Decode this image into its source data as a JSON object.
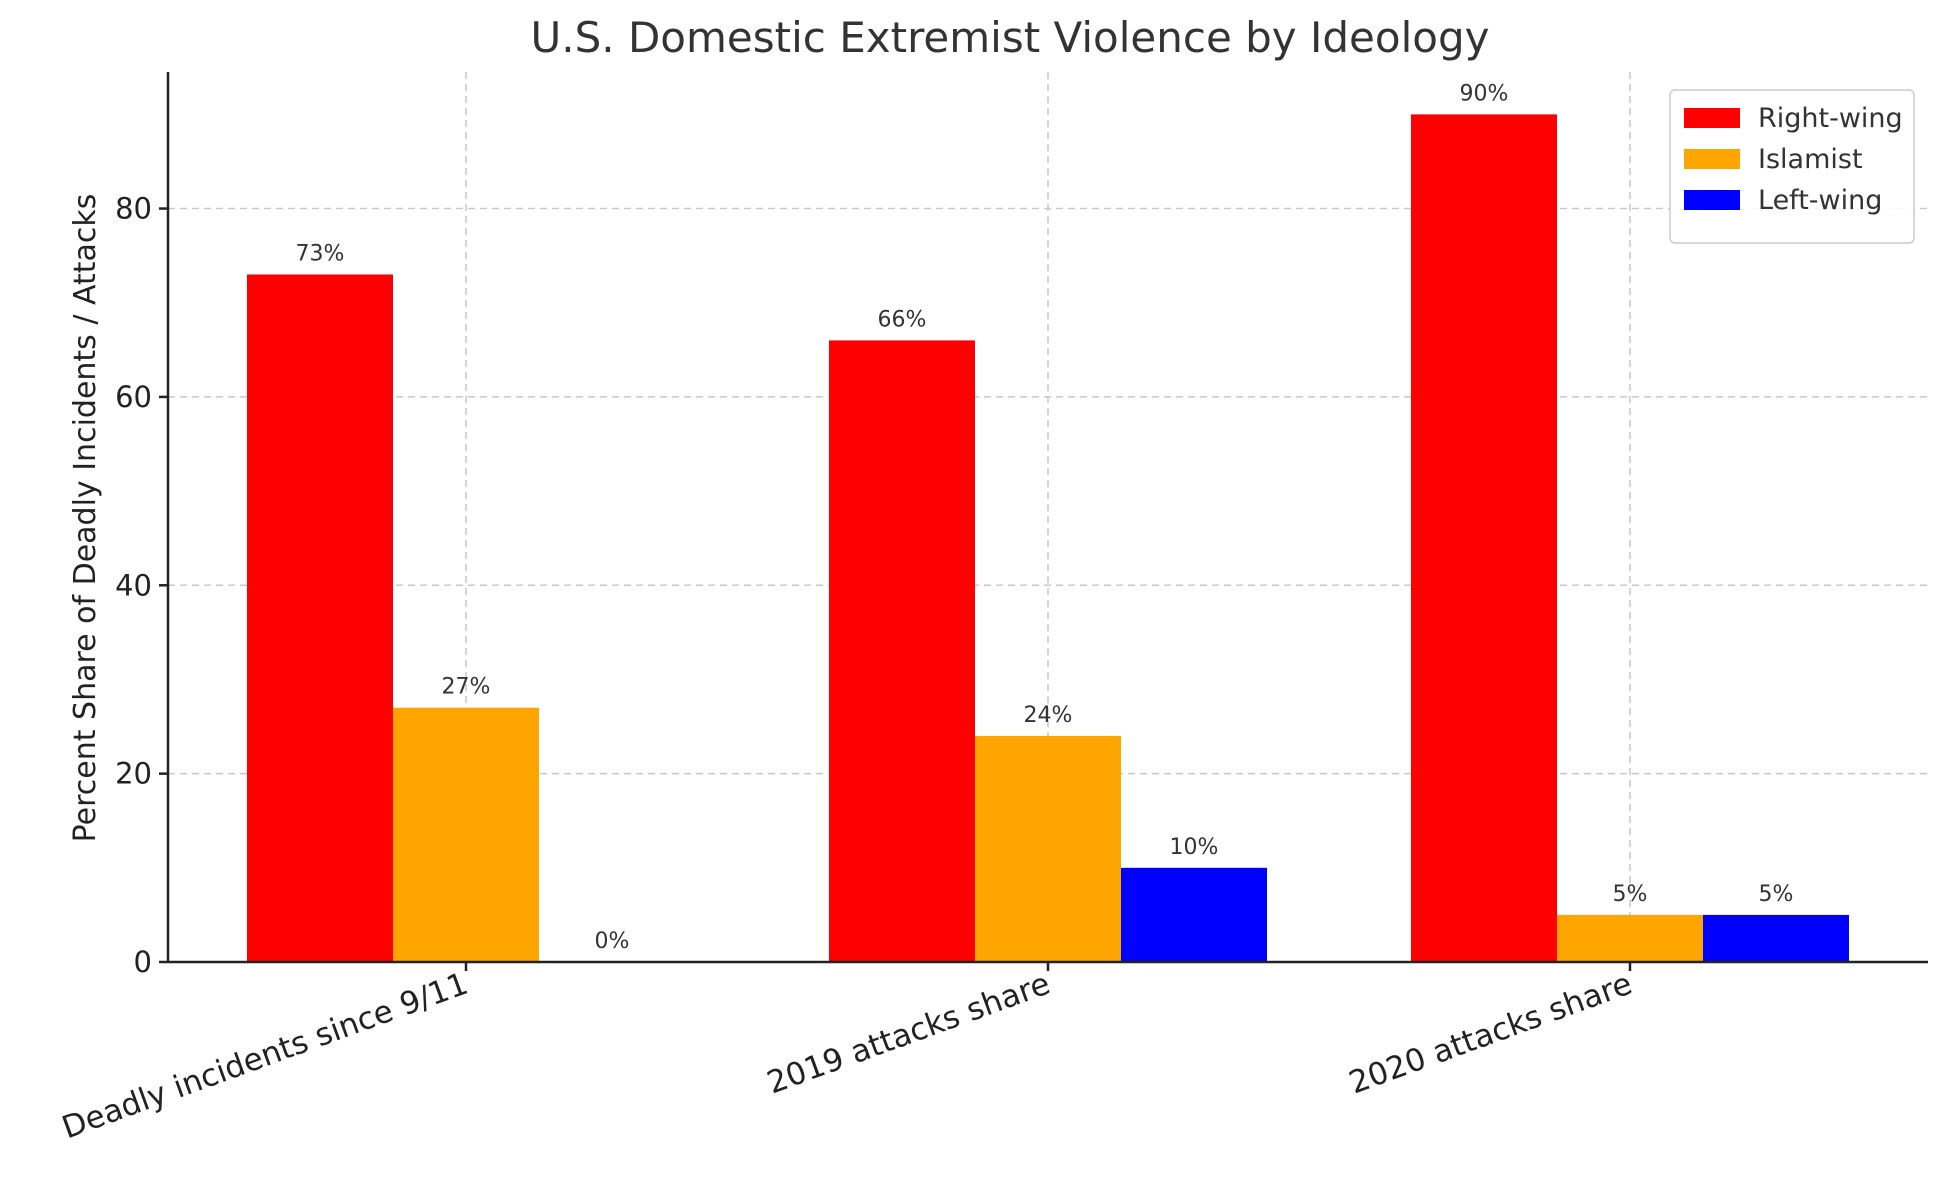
{
  "chart_data": {
    "type": "bar",
    "title": "U.S. Domestic Extremist Violence by Ideology",
    "xlabel": "",
    "ylabel": "Percent Share of Deadly Incidents / Attacks",
    "categories": [
      "Deadly incidents since 9/11",
      "2019 attacks share",
      "2020 attacks share"
    ],
    "series": [
      {
        "name": "Right-wing",
        "color": "#ff0000",
        "values": [
          73,
          66,
          90
        ]
      },
      {
        "name": "Islamist",
        "color": "#ffa500",
        "values": [
          27,
          24,
          5
        ]
      },
      {
        "name": "Left-wing",
        "color": "#0000ff",
        "values": [
          0,
          10,
          5
        ]
      }
    ],
    "value_suffix": "%",
    "ylim": [
      0,
      94.5
    ],
    "yticks": [
      0,
      20,
      40,
      60,
      80
    ],
    "grid": true,
    "legend_position": "top-right"
  }
}
